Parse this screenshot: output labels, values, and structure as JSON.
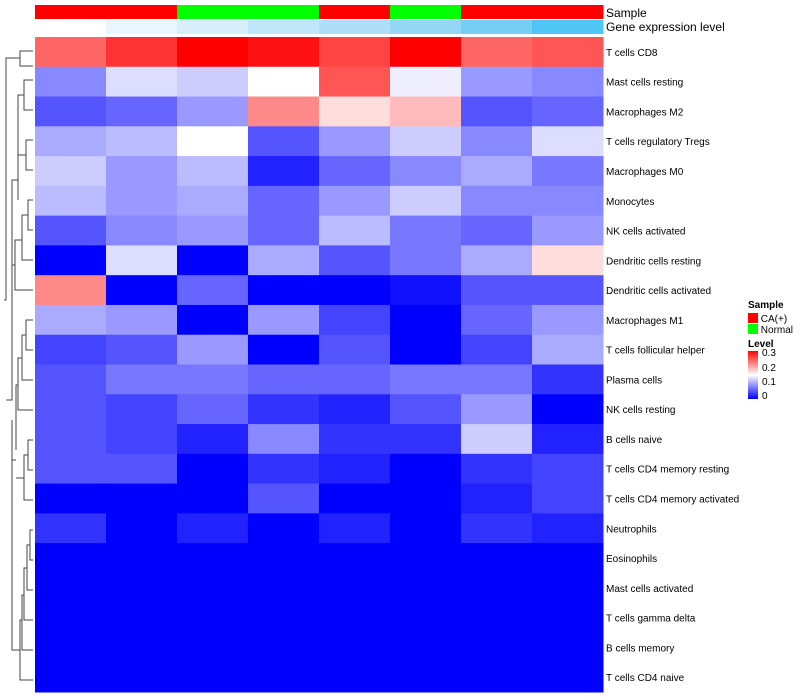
{
  "chart_data": {
    "type": "heatmap",
    "annotations": {
      "sample_label": "Sample",
      "expression_label": "Gene expression level",
      "sample": [
        "CA(+)",
        "CA(+)",
        "Normal",
        "Normal",
        "CA(+)",
        "Normal",
        "CA(+)",
        "CA(+)"
      ],
      "expression_colors": [
        "#ffffff",
        "#eaf6fd",
        "#d6effb",
        "#c0e6f9",
        "#ade0f8",
        "#93d6f5",
        "#74cff3",
        "#4fc6f3"
      ]
    },
    "rows": [
      "T cells CD8",
      "Mast cells resting",
      "Macrophages M2",
      "T cells regulatory  Tregs",
      "Macrophages M0",
      "Monocytes",
      "NK cells activated",
      "Dendritic cells resting",
      "Dendritic cells activated",
      "Macrophages M1",
      "T cells follicular helper",
      "Plasma cells",
      "NK cells resting",
      "B cells naive",
      "T cells CD4 memory resting",
      "T cells CD4 memory activated",
      "Neutrophils",
      "Eosinophils",
      "Mast cells activated",
      "T cells gamma delta",
      "B cells memory",
      "T cells CD4 naive"
    ],
    "values": [
      [
        0.24,
        0.27,
        0.3,
        0.29,
        0.26,
        0.3,
        0.24,
        0.25
      ],
      [
        0.08,
        0.13,
        0.12,
        0.15,
        0.25,
        0.14,
        0.09,
        0.08
      ],
      [
        0.05,
        0.06,
        0.09,
        0.22,
        0.17,
        0.19,
        0.05,
        0.06
      ],
      [
        0.1,
        0.11,
        0.15,
        0.05,
        0.09,
        0.12,
        0.08,
        0.13
      ],
      [
        0.12,
        0.09,
        0.11,
        0.02,
        0.06,
        0.08,
        0.1,
        0.07
      ],
      [
        0.11,
        0.09,
        0.1,
        0.06,
        0.09,
        0.12,
        0.08,
        0.08
      ],
      [
        0.05,
        0.08,
        0.09,
        0.06,
        0.11,
        0.07,
        0.06,
        0.09
      ],
      [
        0,
        0.13,
        0,
        0.1,
        0.05,
        0.07,
        0.1,
        0.17
      ],
      [
        0.22,
        0,
        0.06,
        0,
        0,
        0.01,
        0.05,
        0.05
      ],
      [
        0.1,
        0.09,
        0,
        0.09,
        0.04,
        0,
        0.06,
        0.09
      ],
      [
        0.04,
        0.05,
        0.09,
        0,
        0.05,
        0,
        0.04,
        0.1
      ],
      [
        0.05,
        0.07,
        0.07,
        0.06,
        0.06,
        0.07,
        0.07,
        0.03
      ],
      [
        0.05,
        0.04,
        0.06,
        0.03,
        0.02,
        0.05,
        0.09,
        0
      ],
      [
        0.05,
        0.04,
        0.02,
        0.08,
        0.03,
        0.03,
        0.12,
        0.02
      ],
      [
        0.05,
        0.05,
        0,
        0.03,
        0.02,
        0,
        0.03,
        0.04
      ],
      [
        0,
        0,
        0,
        0.05,
        0,
        0,
        0.02,
        0.04
      ],
      [
        0.03,
        0,
        0.02,
        0,
        0.02,
        0,
        0.03,
        0.02
      ],
      [
        0,
        0,
        0,
        0,
        0,
        0,
        0,
        0
      ],
      [
        0,
        0,
        0,
        0,
        0,
        0,
        0,
        0
      ],
      [
        0,
        0,
        0,
        0,
        0,
        0,
        0,
        0
      ],
      [
        0,
        0,
        0,
        0,
        0,
        0,
        0,
        0
      ],
      [
        0,
        0,
        0,
        0,
        0,
        0,
        0,
        0
      ]
    ],
    "scale": {
      "min": 0,
      "mid": 0.15,
      "max": 0.3,
      "low_color": "#0000ff",
      "mid_color": "#ffffff",
      "high_color": "#ff0000"
    },
    "legend": {
      "sample_title": "Sample",
      "sample_items": [
        {
          "label": "CA(+)",
          "color": "#ff0000"
        },
        {
          "label": "Normal",
          "color": "#00ff00"
        }
      ],
      "level_title": "Level",
      "level_ticks": [
        "0.3",
        "0.2",
        "0.1",
        "0"
      ]
    }
  }
}
